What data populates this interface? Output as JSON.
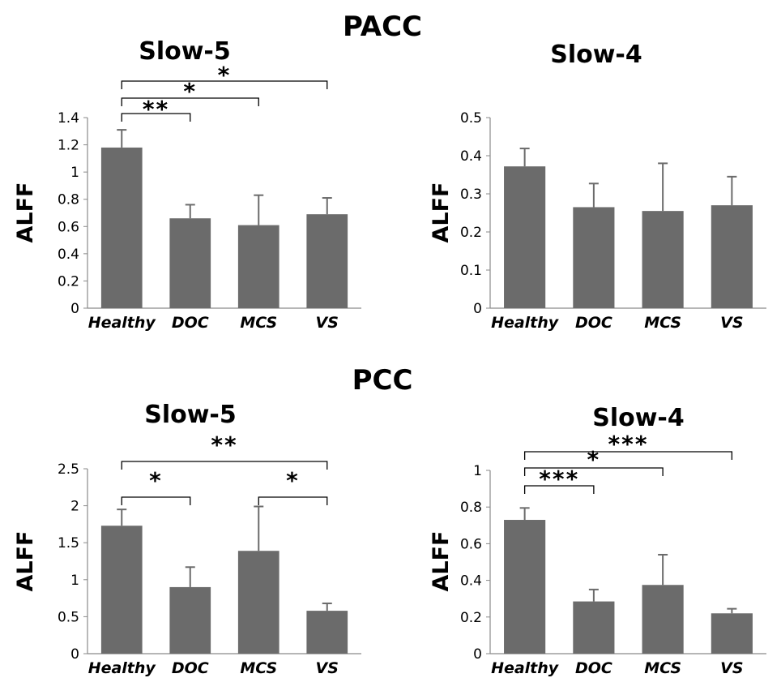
{
  "sections": {
    "top": "PACC",
    "bottom": "PCC"
  },
  "chart_data": [
    {
      "type": "bar",
      "region": "PACC",
      "title": "Slow-5",
      "ylabel": "ALFF",
      "categories": [
        "Healthy",
        "DOC",
        "MCS",
        "VS"
      ],
      "values": [
        1.18,
        0.66,
        0.61,
        0.69
      ],
      "errors": [
        0.13,
        0.1,
        0.22,
        0.12
      ],
      "ylim": [
        0,
        1.4
      ],
      "yticks": [
        "0",
        "0.2",
        "0.4",
        "0.6",
        "0.8",
        "1",
        "1.2",
        "1.4"
      ],
      "significance": [
        {
          "from": 0,
          "to": 1,
          "label": "**"
        },
        {
          "from": 0,
          "to": 2,
          "label": "*"
        },
        {
          "from": 0,
          "to": 3,
          "label": "*"
        }
      ],
      "color": "#6b6b6b",
      "grid": false
    },
    {
      "type": "bar",
      "region": "PACC",
      "title": "Slow-4",
      "ylabel": "ALFF",
      "categories": [
        "Healthy",
        "DOC",
        "MCS",
        "VS"
      ],
      "values": [
        0.372,
        0.265,
        0.255,
        0.27
      ],
      "errors": [
        0.047,
        0.062,
        0.125,
        0.075
      ],
      "ylim": [
        0,
        0.5
      ],
      "yticks": [
        "0",
        "0.1",
        "0.2",
        "0.3",
        "0.4",
        "0.5"
      ],
      "significance": [],
      "color": "#6b6b6b",
      "grid": false
    },
    {
      "type": "bar",
      "region": "PCC",
      "title": "Slow-5",
      "ylabel": "ALFF",
      "categories": [
        "Healthy",
        "DOC",
        "MCS",
        "VS"
      ],
      "values": [
        1.73,
        0.9,
        1.39,
        0.58
      ],
      "errors": [
        0.22,
        0.27,
        0.6,
        0.1
      ],
      "ylim": [
        0,
        2.5
      ],
      "yticks": [
        "0",
        "0.5",
        "1",
        "1.5",
        "2",
        "2.5"
      ],
      "significance": [
        {
          "from": 0,
          "to": 1,
          "label": "*"
        },
        {
          "from": 2,
          "to": 3,
          "label": "*"
        },
        {
          "from": 0,
          "to": 3,
          "label": "**"
        }
      ],
      "color": "#6b6b6b",
      "grid": false
    },
    {
      "type": "bar",
      "region": "PCC",
      "title": "Slow-4",
      "ylabel": "ALFF",
      "categories": [
        "Healthy",
        "DOC",
        "MCS",
        "VS"
      ],
      "values": [
        0.73,
        0.285,
        0.375,
        0.22
      ],
      "errors": [
        0.065,
        0.065,
        0.165,
        0.025
      ],
      "ylim": [
        0,
        1
      ],
      "yticks": [
        "0",
        "0.2",
        "0.4",
        "0.6",
        "0.8",
        "1"
      ],
      "significance": [
        {
          "from": 0,
          "to": 1,
          "label": "***"
        },
        {
          "from": 0,
          "to": 2,
          "label": "*"
        },
        {
          "from": 0,
          "to": 3,
          "label": "***"
        }
      ],
      "color": "#6b6b6b",
      "grid": false
    }
  ]
}
